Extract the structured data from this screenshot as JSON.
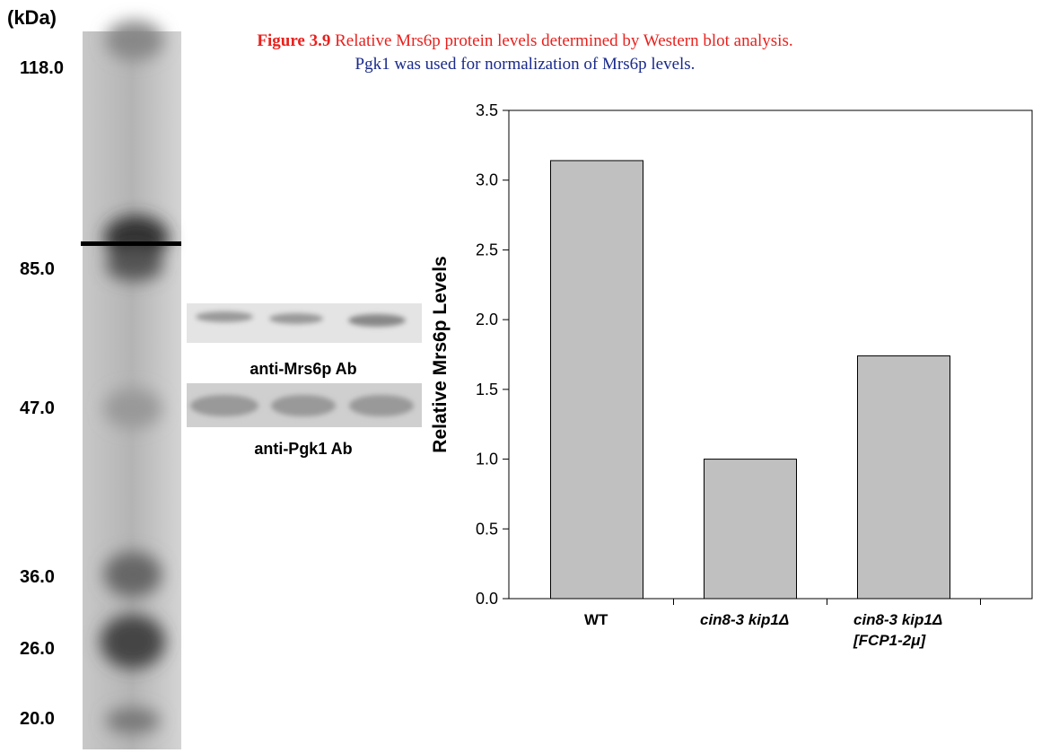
{
  "caption": {
    "label": "Figure 3.9",
    "text": "Relative Mrs6p protein levels determined by Western blot analysis.",
    "note": "Pgk1 was used for normalization of Mrs6p levels."
  },
  "gel": {
    "unit": "(kDa)",
    "markers": [
      "118.0",
      "85.0",
      "47.0",
      "36.0",
      "26.0",
      "20.0"
    ]
  },
  "blots": [
    "anti-Mrs6p Ab",
    "anti-Pgk1 Ab"
  ],
  "chart_data": {
    "type": "bar",
    "y_label": "Relative Mrs6p Levels",
    "categories": [
      "WT",
      "cin8-3 kip1Δ",
      "cin8-3 kip1Δ\n[FCP1-2μ]"
    ],
    "values": [
      3.14,
      1.0,
      1.74
    ],
    "color": "#c0c0c0",
    "ylim": [
      0,
      3.5
    ],
    "yticks": [
      {
        "value": 0,
        "label": "0.0"
      },
      0.5,
      {
        "value": 1,
        "label": "1.0"
      },
      1.5,
      {
        "value": 2,
        "label": "2.0"
      },
      2.5,
      {
        "value": 3,
        "label": "3.0"
      },
      3.5
    ]
  }
}
